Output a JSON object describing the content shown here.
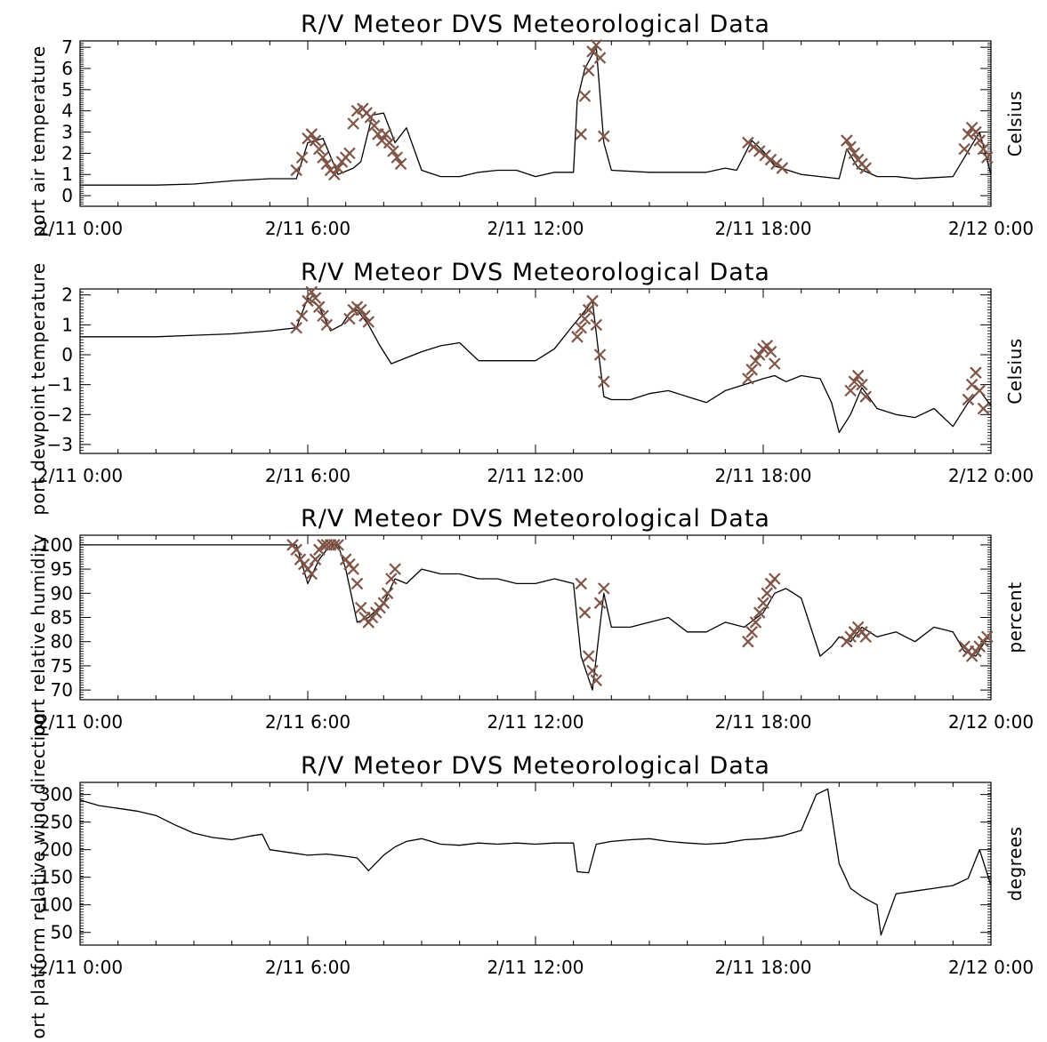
{
  "chart_data": [
    {
      "type": "line",
      "title": "R/V Meteor DVS Meteorological Data",
      "ylabel": "port air temperature",
      "right_label": "Celsius",
      "ylim": [
        -0.5,
        7.3
      ],
      "yticks": [
        "0",
        "1",
        "2",
        "3",
        "4",
        "5",
        "6",
        "7"
      ],
      "ytick_values": [
        0,
        1,
        2,
        3,
        4,
        5,
        6,
        7
      ],
      "xlim": [
        0,
        24
      ],
      "xtick_labels": [
        "2/11 0:00",
        "2/11 6:00",
        "2/11 12:00",
        "2/11 18:00",
        "2/12 0:00"
      ],
      "xtick_values": [
        0,
        6,
        12,
        18,
        24
      ],
      "line_color": "#000000",
      "marker_color": "#7f5548",
      "marker": "x",
      "series": [
        {
          "x": [
            0,
            1,
            2,
            3,
            4,
            5,
            5.7,
            6,
            6.4,
            6.8,
            7.2,
            7.4,
            7.7,
            8,
            8.3,
            8.6,
            9,
            9.5,
            10,
            10.5,
            11,
            11.5,
            12,
            12.5,
            13,
            13.1,
            13.3,
            13.6,
            13.8,
            14,
            15,
            16,
            16.5,
            17,
            17.3,
            17.7,
            18,
            18.3,
            19,
            19.5,
            20,
            20.2,
            20.5,
            21,
            21.5,
            22,
            22.5,
            23,
            23.3,
            23.7,
            24
          ],
          "y": [
            0.5,
            0.5,
            0.5,
            0.55,
            0.7,
            0.8,
            0.8,
            2.5,
            2.7,
            1.0,
            1.3,
            1.6,
            3.8,
            3.9,
            2.5,
            3.2,
            1.2,
            0.9,
            0.9,
            1.1,
            1.2,
            1.2,
            0.9,
            1.1,
            1.1,
            4.5,
            6.0,
            7.0,
            2.5,
            1.2,
            1.1,
            1.1,
            1.1,
            1.3,
            1.2,
            2.6,
            2.1,
            1.4,
            1.0,
            0.9,
            0.8,
            2.2,
            1.3,
            0.9,
            0.9,
            0.8,
            0.85,
            0.9,
            1.8,
            3.0,
            1.0
          ]
        }
      ],
      "marker_points": {
        "x": [
          5.7,
          5.85,
          6.0,
          6.1,
          6.2,
          6.3,
          6.4,
          6.5,
          6.6,
          6.7,
          6.8,
          6.9,
          7.0,
          7.1,
          7.2,
          7.3,
          7.45,
          7.55,
          7.65,
          7.75,
          7.85,
          7.95,
          8.05,
          8.15,
          8.25,
          8.35,
          8.45,
          13.2,
          13.3,
          13.4,
          13.5,
          13.6,
          13.7,
          13.8,
          17.6,
          17.75,
          17.9,
          18.05,
          18.2,
          18.35,
          18.5,
          20.2,
          20.3,
          20.4,
          20.5,
          20.6,
          20.7,
          23.3,
          23.4,
          23.5,
          23.6,
          23.7,
          23.8,
          23.9
        ],
        "y": [
          1.2,
          1.8,
          2.7,
          2.9,
          2.6,
          2.2,
          1.8,
          1.5,
          1.2,
          1.0,
          1.3,
          1.6,
          1.8,
          2.0,
          3.4,
          4.0,
          4.1,
          3.9,
          3.7,
          3.3,
          2.9,
          2.6,
          2.9,
          2.5,
          2.1,
          1.8,
          1.5,
          2.9,
          4.7,
          5.9,
          6.8,
          7.1,
          6.5,
          2.8,
          2.5,
          2.3,
          2.1,
          1.9,
          1.7,
          1.5,
          1.3,
          2.6,
          2.3,
          2.0,
          1.7,
          1.5,
          1.3,
          2.2,
          2.9,
          3.2,
          3.0,
          2.6,
          2.2,
          1.8
        ]
      }
    },
    {
      "type": "line",
      "title": "R/V Meteor DVS Meteorological Data",
      "ylabel": "port dewpoint temperature",
      "right_label": "Celsius",
      "ylim": [
        -3.3,
        2.2
      ],
      "yticks": [
        "−3",
        "−2",
        "−1",
        "0",
        "1",
        "2"
      ],
      "ytick_values": [
        -3,
        -2,
        -1,
        0,
        1,
        2
      ],
      "xlim": [
        0,
        24
      ],
      "xtick_labels": [
        "2/11 0:00",
        "2/11 6:00",
        "2/11 12:00",
        "2/11 18:00",
        "2/12 0:00"
      ],
      "xtick_values": [
        0,
        6,
        12,
        18,
        24
      ],
      "line_color": "#000000",
      "marker_color": "#7f5548",
      "marker": "x",
      "series": [
        {
          "x": [
            0,
            1,
            2,
            3,
            4,
            5,
            5.7,
            6,
            6.3,
            6.6,
            6.9,
            7.1,
            7.3,
            7.6,
            7.9,
            8.2,
            8.6,
            9,
            9.5,
            10,
            10.5,
            11,
            11.5,
            12,
            12.5,
            13,
            13.2,
            13.5,
            13.8,
            14,
            14.5,
            15,
            15.5,
            16,
            16.5,
            17,
            17.5,
            18,
            18.3,
            18.6,
            19,
            19.5,
            19.8,
            20,
            20.3,
            20.6,
            21,
            21.5,
            22,
            22.5,
            23,
            23.4,
            23.7,
            24
          ],
          "y": [
            0.6,
            0.6,
            0.6,
            0.65,
            0.7,
            0.8,
            0.9,
            1.9,
            1.6,
            0.8,
            1.0,
            1.4,
            1.5,
            1.0,
            0.3,
            -0.3,
            -0.1,
            0.1,
            0.3,
            0.4,
            -0.2,
            -0.2,
            -0.2,
            -0.2,
            0.2,
            1.0,
            1.3,
            1.8,
            -1.4,
            -1.5,
            -1.5,
            -1.3,
            -1.2,
            -1.4,
            -1.6,
            -1.2,
            -1.0,
            -0.8,
            -0.7,
            -0.9,
            -0.7,
            -0.8,
            -1.6,
            -2.6,
            -2.0,
            -1.1,
            -1.8,
            -2.0,
            -2.1,
            -1.8,
            -2.4,
            -1.6,
            -1.2,
            -1.7
          ]
        }
      ],
      "marker_points": {
        "x": [
          5.7,
          5.85,
          6.0,
          6.1,
          6.2,
          6.3,
          6.4,
          6.5,
          7.1,
          7.2,
          7.3,
          7.4,
          7.5,
          7.6,
          13.1,
          13.2,
          13.3,
          13.4,
          13.5,
          13.6,
          13.7,
          13.8,
          17.6,
          17.7,
          17.8,
          17.9,
          18.0,
          18.1,
          18.2,
          18.3,
          20.3,
          20.4,
          20.5,
          20.6,
          20.7,
          23.4,
          23.5,
          23.6,
          23.7,
          23.8
        ],
        "y": [
          0.9,
          1.3,
          1.8,
          2.1,
          1.9,
          1.6,
          1.3,
          1.0,
          1.2,
          1.5,
          1.6,
          1.5,
          1.3,
          1.1,
          0.6,
          0.9,
          1.2,
          1.5,
          1.8,
          1.0,
          0.0,
          -0.9,
          -0.8,
          -0.5,
          -0.2,
          0.0,
          0.2,
          0.3,
          0.1,
          -0.3,
          -1.2,
          -0.9,
          -0.7,
          -1.0,
          -1.4,
          -1.5,
          -1.0,
          -0.6,
          -1.2,
          -1.8
        ]
      }
    },
    {
      "type": "line",
      "title": "R/V Meteor DVS Meteorological Data",
      "ylabel": "port relative humidity",
      "right_label": "percent",
      "ylim": [
        68,
        102
      ],
      "yticks": [
        "70",
        "75",
        "80",
        "85",
        "90",
        "95",
        "100"
      ],
      "ytick_values": [
        70,
        75,
        80,
        85,
        90,
        95,
        100
      ],
      "xlim": [
        0,
        24
      ],
      "xtick_labels": [
        "2/11 0:00",
        "2/11 6:00",
        "2/11 12:00",
        "2/11 18:00",
        "2/12 0:00"
      ],
      "xtick_values": [
        0,
        6,
        12,
        18,
        24
      ],
      "line_color": "#000000",
      "marker_color": "#7f5548",
      "marker": "x",
      "series": [
        {
          "x": [
            0,
            1,
            2,
            3,
            4,
            5,
            5.7,
            6,
            6.3,
            6.6,
            6.8,
            7,
            7.3,
            7.6,
            8,
            8.3,
            8.6,
            9,
            9.5,
            10,
            10.5,
            11,
            11.5,
            12,
            12.5,
            13,
            13.2,
            13.5,
            13.8,
            14,
            14.5,
            15,
            15.5,
            16,
            16.5,
            17,
            17.5,
            18,
            18.3,
            18.6,
            19,
            19.5,
            19.8,
            20,
            20.3,
            20.6,
            21,
            21.5,
            22,
            22.5,
            23,
            23.3,
            23.6,
            24
          ],
          "y": [
            100,
            100,
            100,
            100,
            100,
            100,
            100,
            92,
            97,
            100,
            100,
            95,
            84,
            85,
            88,
            93,
            92,
            95,
            94,
            94,
            93,
            93,
            92,
            92,
            93,
            92,
            77,
            70,
            90,
            83,
            83,
            84,
            85,
            82,
            82,
            84,
            83,
            86,
            90,
            91,
            89,
            77,
            79,
            81,
            80,
            83,
            81,
            82,
            80,
            83,
            82,
            78,
            77,
            82
          ]
        }
      ],
      "marker_points": {
        "x": [
          5.6,
          5.7,
          5.8,
          5.9,
          6.0,
          6.1,
          6.2,
          6.3,
          6.4,
          6.5,
          6.6,
          6.7,
          6.8,
          7.0,
          7.1,
          7.2,
          7.3,
          7.4,
          7.5,
          7.6,
          7.7,
          7.8,
          7.9,
          8.0,
          8.1,
          8.2,
          8.3,
          13.2,
          13.3,
          13.4,
          13.5,
          13.6,
          13.7,
          13.8,
          17.6,
          17.7,
          17.8,
          17.9,
          18.0,
          18.1,
          18.2,
          18.3,
          20.2,
          20.3,
          20.4,
          20.5,
          20.6,
          20.7,
          23.3,
          23.4,
          23.5,
          23.6,
          23.7,
          23.8,
          23.9
        ],
        "y": [
          100,
          99,
          97,
          96,
          95,
          94,
          97,
          99,
          100,
          100,
          100,
          100,
          100,
          97,
          96,
          95,
          92,
          87,
          85,
          84,
          85,
          86,
          87,
          88,
          90,
          93,
          95,
          92,
          86,
          77,
          74,
          72,
          88,
          91,
          80,
          82,
          84,
          86,
          88,
          90,
          92,
          93,
          80,
          81,
          82,
          83,
          82,
          81,
          79,
          78,
          77,
          78,
          79,
          80,
          81
        ]
      }
    },
    {
      "type": "line",
      "title": "R/V Meteor DVS Meteorological Data",
      "ylabel": "port platform relative wind direction",
      "right_label": "degrees",
      "ylim": [
        27,
        322
      ],
      "yticks": [
        "50",
        "100",
        "150",
        "200",
        "250",
        "300"
      ],
      "ytick_values": [
        50,
        100,
        150,
        200,
        250,
        300
      ],
      "xlim": [
        0,
        24
      ],
      "xtick_labels": [
        "2/11 0:00",
        "2/11 6:00",
        "2/11 12:00",
        "2/11 18:00",
        "2/12 0:00"
      ],
      "xtick_values": [
        0,
        6,
        12,
        18,
        24
      ],
      "line_color": "#000000",
      "series": [
        {
          "x": [
            0,
            0.5,
            1,
            1.5,
            2,
            2.5,
            3,
            3.5,
            4,
            4.5,
            4.8,
            5,
            5.5,
            6,
            6.5,
            7,
            7.3,
            7.6,
            8,
            8.3,
            8.6,
            9,
            9.5,
            10,
            10.5,
            11,
            11.5,
            12,
            12.5,
            13,
            13.1,
            13.4,
            13.6,
            14,
            14.5,
            15,
            15.5,
            16,
            16.5,
            17,
            17.5,
            18,
            18.5,
            19,
            19.4,
            19.7,
            20,
            20.3,
            20.6,
            21,
            21.1,
            21.5,
            22,
            22.5,
            23,
            23.4,
            23.7,
            24
          ],
          "y": [
            290,
            280,
            275,
            270,
            262,
            245,
            230,
            222,
            218,
            225,
            228,
            200,
            195,
            190,
            192,
            188,
            185,
            162,
            190,
            205,
            215,
            220,
            210,
            208,
            212,
            210,
            212,
            210,
            212,
            212,
            160,
            158,
            210,
            215,
            218,
            220,
            215,
            212,
            210,
            212,
            218,
            220,
            225,
            235,
            300,
            310,
            175,
            130,
            115,
            100,
            45,
            120,
            125,
            130,
            135,
            148,
            200,
            135
          ]
        }
      ]
    }
  ]
}
